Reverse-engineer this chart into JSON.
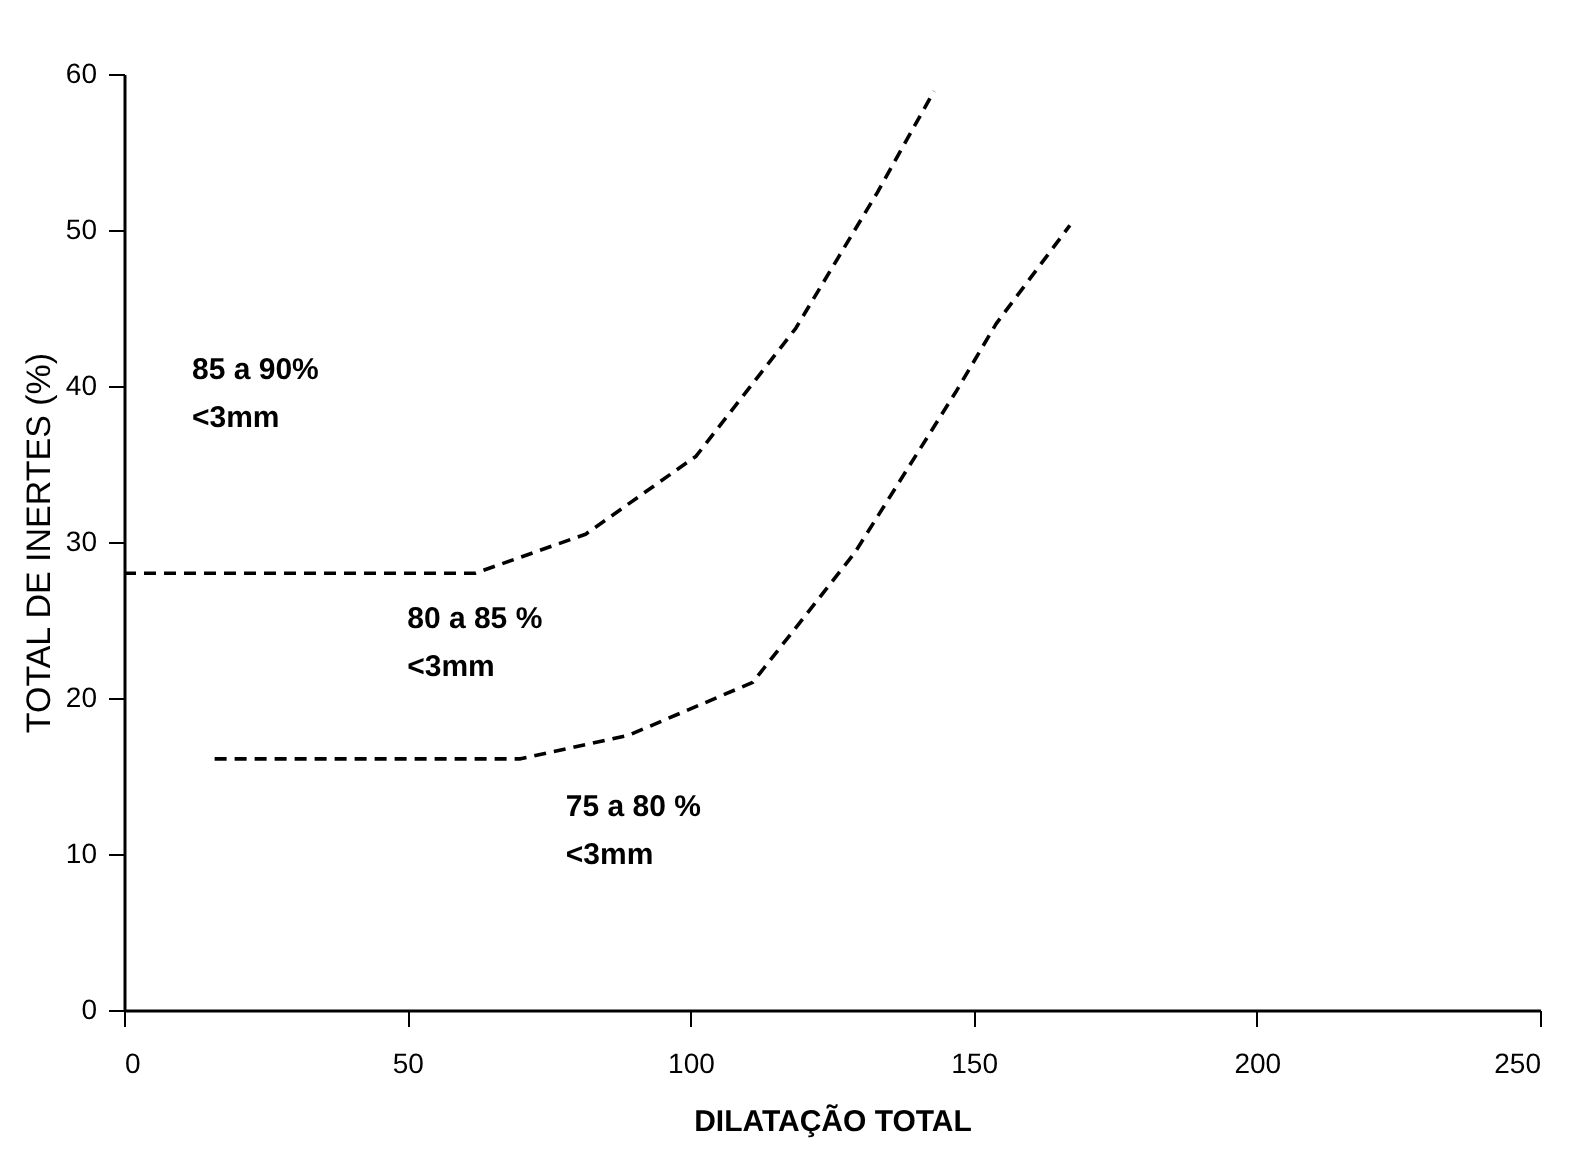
{
  "chart_data": {
    "type": "line",
    "xlabel": "DILATAÇÃO TOTAL",
    "ylabel": "TOTAL DE INERTES (%)",
    "xlim": [
      0,
      250
    ],
    "xticks": [
      0,
      50,
      100,
      150,
      200,
      250
    ],
    "ylim": [
      0,
      60
    ],
    "yticks": [
      0,
      10,
      20,
      30,
      40,
      50,
      60
    ],
    "grid": false,
    "marker": "none",
    "series": [
      {
        "color": "#000000",
        "line_style": "dashed",
        "x": [
          0,
          62,
          81.5,
          101,
          118.6,
          133,
          143
        ],
        "values": [
          28,
          28,
          30.5,
          35.5,
          43.7,
          52.4,
          58.9
        ]
      },
      {
        "color": "#000000",
        "line_style": "dashed",
        "x": [
          16,
          70,
          89,
          111,
          129,
          147,
          154,
          167
        ],
        "values": [
          16.1,
          16.1,
          17.6,
          21,
          29.3,
          39.7,
          44,
          50.3
        ]
      }
    ],
    "annotations": [
      "85 a 90%\n<3mm",
      "80 a 85 %\n<3mm",
      "75 a 80 %\n<3mm"
    ]
  }
}
